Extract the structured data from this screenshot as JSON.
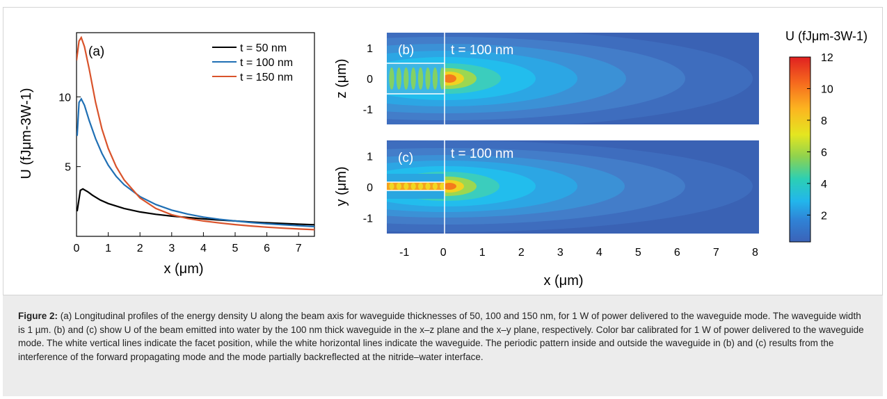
{
  "figure_panel": {
    "panel_a": {
      "label": "(a)",
      "ylabel": "U (fJμm-3W-1)",
      "xlabel": "x (μm)",
      "xticks": [
        "0",
        "1",
        "2",
        "3",
        "4",
        "5",
        "6",
        "7"
      ],
      "yticks": [
        "5",
        "10"
      ]
    },
    "panel_b": {
      "label": "(b)",
      "annotation": "t = 100 nm",
      "ylabel": "z (μm)",
      "yticks": [
        "1",
        "0",
        "-1"
      ]
    },
    "panel_c": {
      "label": "(c)",
      "annotation": "t = 100 nm",
      "ylabel": "y (μm)",
      "yticks": [
        "1",
        "0",
        "-1"
      ]
    },
    "shared_x": {
      "xticks": [
        "-1",
        "0",
        "1",
        "2",
        "3",
        "4",
        "5",
        "6",
        "7",
        "8"
      ],
      "xlabel": "x (μm)"
    },
    "colorbar": {
      "title": "U (fJμm-3W-1)",
      "ticks": [
        "12",
        "10",
        "8",
        "6",
        "4",
        "2"
      ],
      "min": 0.3,
      "max": 12
    }
  },
  "chart_data": [
    {
      "type": "line",
      "panel": "(a)",
      "xlabel": "x (μm)",
      "ylabel": "U (fJμm-3W-1)",
      "xlim": [
        0,
        7.5
      ],
      "ylim": [
        0,
        14.6
      ],
      "legend_position": "top-right",
      "grid": false,
      "series": [
        {
          "name": "t = 50 nm",
          "color": "#000000",
          "x": [
            0.02,
            0.12,
            0.2,
            0.35,
            0.5,
            0.75,
            1,
            1.5,
            2,
            2.5,
            3,
            3.5,
            4,
            4.5,
            5,
            5.5,
            6,
            6.5,
            7,
            7.5
          ],
          "y": [
            1.8,
            3.3,
            3.4,
            3.2,
            2.95,
            2.6,
            2.35,
            2.0,
            1.75,
            1.58,
            1.45,
            1.35,
            1.25,
            1.17,
            1.1,
            1.03,
            0.97,
            0.92,
            0.87,
            0.83
          ]
        },
        {
          "name": "t = 100 nm",
          "color": "#1f6fb4",
          "x": [
            0.02,
            0.08,
            0.15,
            0.25,
            0.4,
            0.6,
            0.8,
            1,
            1.25,
            1.5,
            2,
            2.5,
            3,
            3.5,
            4,
            4.5,
            5,
            5.5,
            6,
            6.5,
            7,
            7.5
          ],
          "y": [
            7.2,
            9.6,
            9.85,
            9.4,
            8.3,
            7.0,
            5.95,
            5.1,
            4.3,
            3.7,
            2.85,
            2.28,
            1.88,
            1.6,
            1.38,
            1.22,
            1.1,
            0.99,
            0.9,
            0.83,
            0.76,
            0.7
          ]
        },
        {
          "name": "t = 150 nm",
          "color": "#d9532b",
          "x": [
            0.0,
            0.08,
            0.15,
            0.25,
            0.4,
            0.6,
            0.8,
            1,
            1.25,
            1.5,
            2,
            2.5,
            3,
            3.5,
            4,
            4.5,
            5,
            5.5,
            6,
            6.5,
            7,
            7.5
          ],
          "y": [
            12.6,
            14.0,
            14.25,
            13.6,
            12.0,
            9.6,
            7.7,
            6.3,
            5.0,
            4.05,
            2.75,
            2.0,
            1.55,
            1.28,
            1.1,
            0.96,
            0.84,
            0.74,
            0.66,
            0.59,
            0.53,
            0.48
          ]
        }
      ]
    },
    {
      "type": "heatmap",
      "panel": "(b)",
      "plane": "x-z",
      "xlabel": "x (μm)",
      "ylabel": "z (μm)",
      "xlim": [
        -1.45,
        8.1
      ],
      "ylim": [
        -1.5,
        1.5
      ],
      "colorbar_range": [
        0.3,
        12
      ],
      "peak": {
        "x": 0.1,
        "value": 10
      },
      "waveguide_half_height": 0.5
    },
    {
      "type": "heatmap",
      "panel": "(c)",
      "plane": "x-y",
      "xlabel": "x (μm)",
      "ylabel": "y (μm)",
      "xlim": [
        -1.45,
        8.1
      ],
      "ylim": [
        -1.5,
        1.5
      ],
      "colorbar_range": [
        0.3,
        12
      ],
      "peak": {
        "x": 0.1,
        "value": 10
      },
      "waveguide_half_height": 0.05
    }
  ],
  "caption": {
    "label": "Figure 2:",
    "text": " (a) Longitudinal profiles of the energy density U along the beam axis for waveguide thicknesses of 50, 100 and 150 nm, for 1 W of power delivered to the waveguide mode. The waveguide width is 1 µm. (b) and (c) show U of the beam emitted into water by the 100 nm thick waveguide in the x–z plane and the x–y plane, respectively. Color bar calibrated for 1 W of power delivered to the waveguide mode. The white vertical lines indicate the facet position, while the white horizontal lines indicate the waveguide. The periodic pattern inside and outside the waveguide in (b) and (c) results from the interference of the forward propagating mode and the mode partially backreflected at the nitride–water interface."
  }
}
